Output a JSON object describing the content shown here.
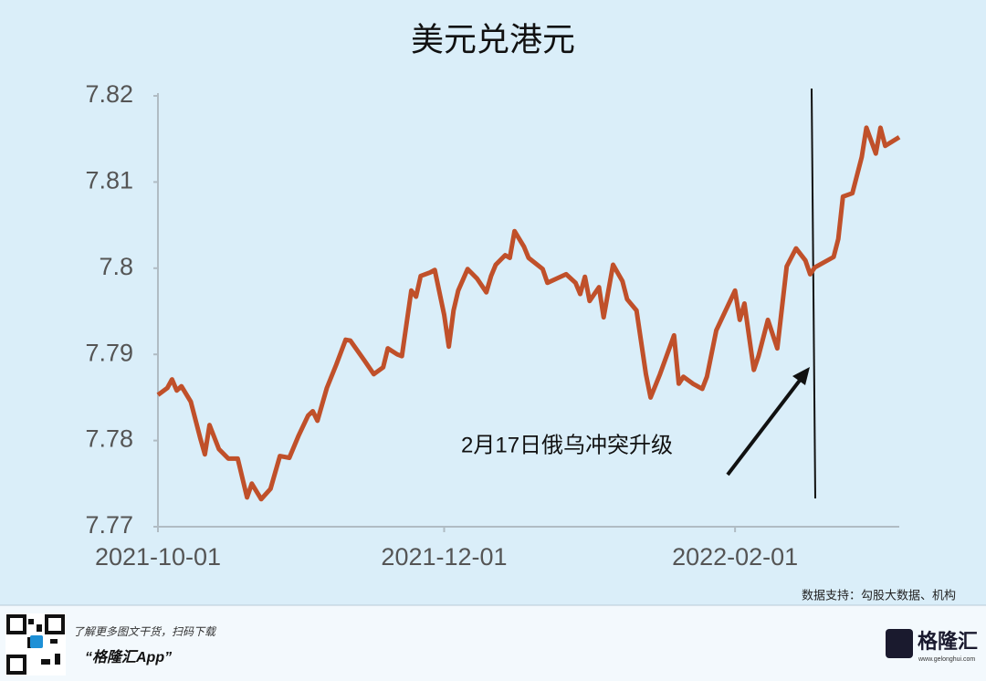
{
  "chart_data": {
    "type": "line",
    "title": "美元兑港元",
    "x": [
      "2021-10-01",
      "2021-10-03",
      "2021-10-04",
      "2021-10-05",
      "2021-10-06",
      "2021-10-08",
      "2021-10-10",
      "2021-10-11",
      "2021-10-12",
      "2021-10-14",
      "2021-10-16",
      "2021-10-18",
      "2021-10-20",
      "2021-10-21",
      "2021-10-23",
      "2021-10-25",
      "2021-10-27",
      "2021-10-29",
      "2021-10-31",
      "2021-11-02",
      "2021-11-03",
      "2021-11-04",
      "2021-11-06",
      "2021-11-08",
      "2021-11-10",
      "2021-11-11",
      "2021-11-14",
      "2021-11-16",
      "2021-11-18",
      "2021-11-19",
      "2021-11-21",
      "2021-11-22",
      "2021-11-24",
      "2021-11-25",
      "2021-11-26",
      "2021-11-28",
      "2021-11-29",
      "2021-12-01",
      "2021-12-02",
      "2021-12-03",
      "2021-12-04",
      "2021-12-06",
      "2021-12-08",
      "2021-12-10",
      "2021-12-11",
      "2021-12-12",
      "2021-12-14",
      "2021-12-15",
      "2021-12-16",
      "2021-12-18",
      "2021-12-19",
      "2021-12-22",
      "2021-12-23",
      "2021-12-25",
      "2021-12-27",
      "2021-12-29",
      "2021-12-30",
      "2021-12-31",
      "2022-01-01",
      "2022-01-03",
      "2022-01-04",
      "2022-01-06",
      "2022-01-08",
      "2022-01-09",
      "2022-01-11",
      "2022-01-13",
      "2022-01-14",
      "2022-01-16",
      "2022-01-19",
      "2022-01-20",
      "2022-01-21",
      "2022-01-23",
      "2022-01-25",
      "2022-01-26",
      "2022-01-28",
      "2022-02-01",
      "2022-02-02",
      "2022-02-03",
      "2022-02-05",
      "2022-02-06",
      "2022-02-08",
      "2022-02-10",
      "2022-02-12",
      "2022-02-14",
      "2022-02-16",
      "2022-02-17",
      "2022-02-18",
      "2022-02-22",
      "2022-02-23",
      "2022-02-24",
      "2022-02-26",
      "2022-02-28",
      "2022-03-01",
      "2022-03-03",
      "2022-03-04",
      "2022-03-05",
      "2022-03-08"
    ],
    "series": [
      {
        "name": "美元兑港元",
        "color": "#c0502a",
        "values": [
          7.7853,
          7.7861,
          7.7871,
          7.7858,
          7.7863,
          7.7845,
          7.7803,
          7.7784,
          7.7818,
          7.779,
          7.7779,
          7.7779,
          7.7734,
          7.775,
          7.7732,
          7.7744,
          7.7782,
          7.778,
          7.7806,
          7.7829,
          7.7834,
          7.7823,
          7.7861,
          7.7888,
          7.7917,
          7.7916,
          7.7893,
          7.7877,
          7.7885,
          7.7907,
          7.79,
          7.7898,
          7.7974,
          7.7967,
          7.7991,
          7.7995,
          7.7998,
          7.7946,
          7.7909,
          7.7951,
          7.7974,
          7.7999,
          7.7988,
          7.7972,
          7.7991,
          7.8004,
          7.8015,
          7.8012,
          7.8043,
          7.8025,
          7.8012,
          7.7999,
          7.7983,
          7.7988,
          7.7993,
          7.7983,
          7.797,
          7.799,
          7.7962,
          7.7978,
          7.7943,
          7.8004,
          7.7985,
          7.7964,
          7.7951,
          7.7877,
          7.785,
          7.7877,
          7.7922,
          7.7866,
          7.7874,
          7.7866,
          7.786,
          7.7874,
          7.7928,
          7.7974,
          7.794,
          7.7959,
          7.7882,
          7.7898,
          7.794,
          7.7907,
          7.8002,
          7.8023,
          7.8009,
          7.7993,
          7.8001,
          7.8013,
          7.8034,
          7.8083,
          7.8087,
          7.8129,
          7.8163,
          7.8133,
          7.8163,
          7.8142,
          7.8152
        ]
      }
    ],
    "xlim": [
      "2021-10-01",
      "2022-03-08"
    ],
    "xticks": [
      "2021-10-01",
      "2021-12-01",
      "2022-02-01"
    ],
    "ylim": [
      7.77,
      7.82
    ],
    "yticks": [
      7.77,
      7.78,
      7.79,
      7.8,
      7.81,
      7.82
    ],
    "annotation": "2月17日俄乌冲突升级",
    "source": "数据支持：勾股大数据、机构"
  },
  "footer": {
    "slogan": "了解更多图文干货，扫码下载",
    "app": "“格隆汇App”",
    "brand": "格隆汇",
    "site": "www.gelonghui.com"
  }
}
